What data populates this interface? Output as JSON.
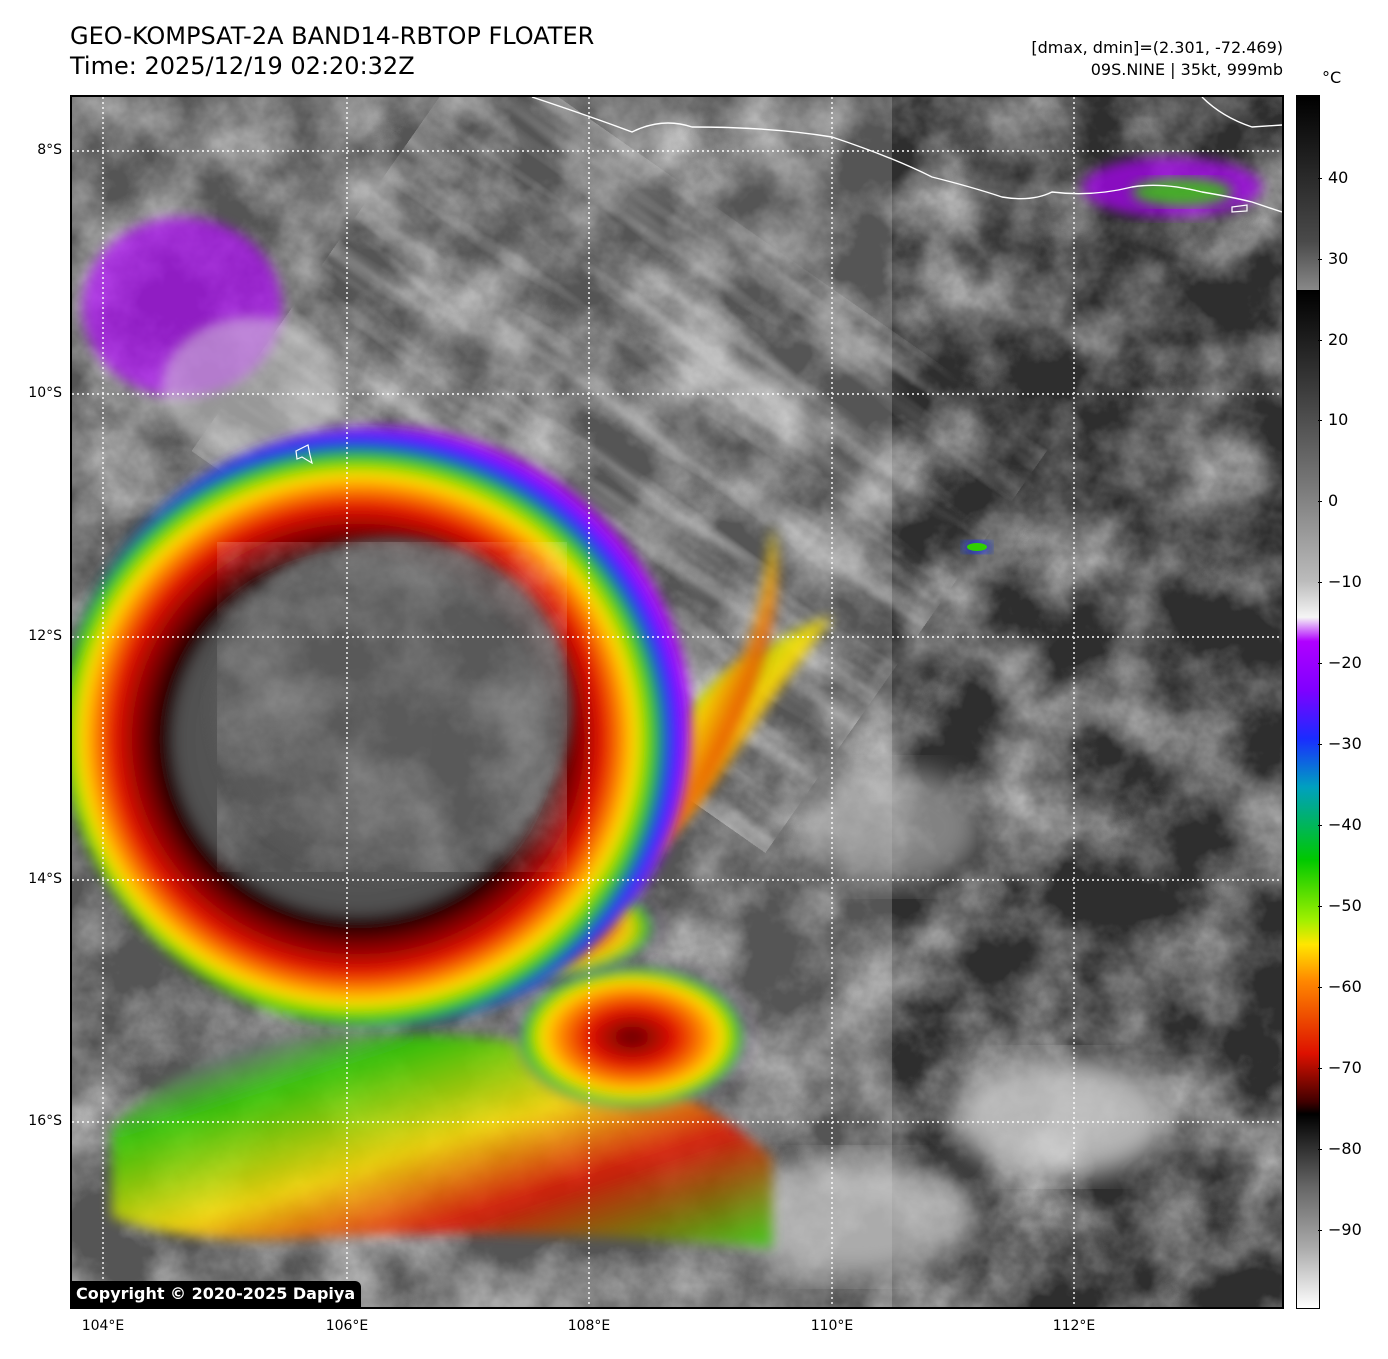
{
  "header": {
    "title_line1": "GEO-KOMPSAT-2A BAND14-RBTOP FLOATER",
    "title_line2": "Time: 2025/12/19 02:20:32Z",
    "meta_line1": "[dmax, dmin]=(2.301, -72.469)",
    "meta_line2": "09S.NINE | 35kt, 999mb"
  },
  "map": {
    "lat_labels": [
      "8°S",
      "10°S",
      "12°S",
      "14°S",
      "16°S"
    ],
    "lon_labels": [
      "104°E",
      "106°E",
      "108°E",
      "110°E",
      "112°E"
    ],
    "gridline_style": "dotted white",
    "coastline_color": "#ffffff",
    "storm": {
      "name": "09S.NINE",
      "intensity": "35kt",
      "pressure": "999mb"
    }
  },
  "colorbar": {
    "unit": "°C",
    "ticks": [
      "40",
      "30",
      "20",
      "10",
      "0",
      "−10",
      "−20",
      "−30",
      "−40",
      "−50",
      "−60",
      "−70",
      "−80",
      "−90"
    ],
    "range": [
      -100,
      50
    ],
    "colors": {
      "warm_gray_top": "#000000",
      "violet": "#b000ff",
      "blue": "#1a2cff",
      "green": "#00c800",
      "yellow": "#ffe600",
      "orange": "#ff8800",
      "red": "#dd1100",
      "dark_red": "#400000"
    }
  },
  "footer": {
    "copyright": "Copyright © 2020-2025 Dapiya"
  }
}
